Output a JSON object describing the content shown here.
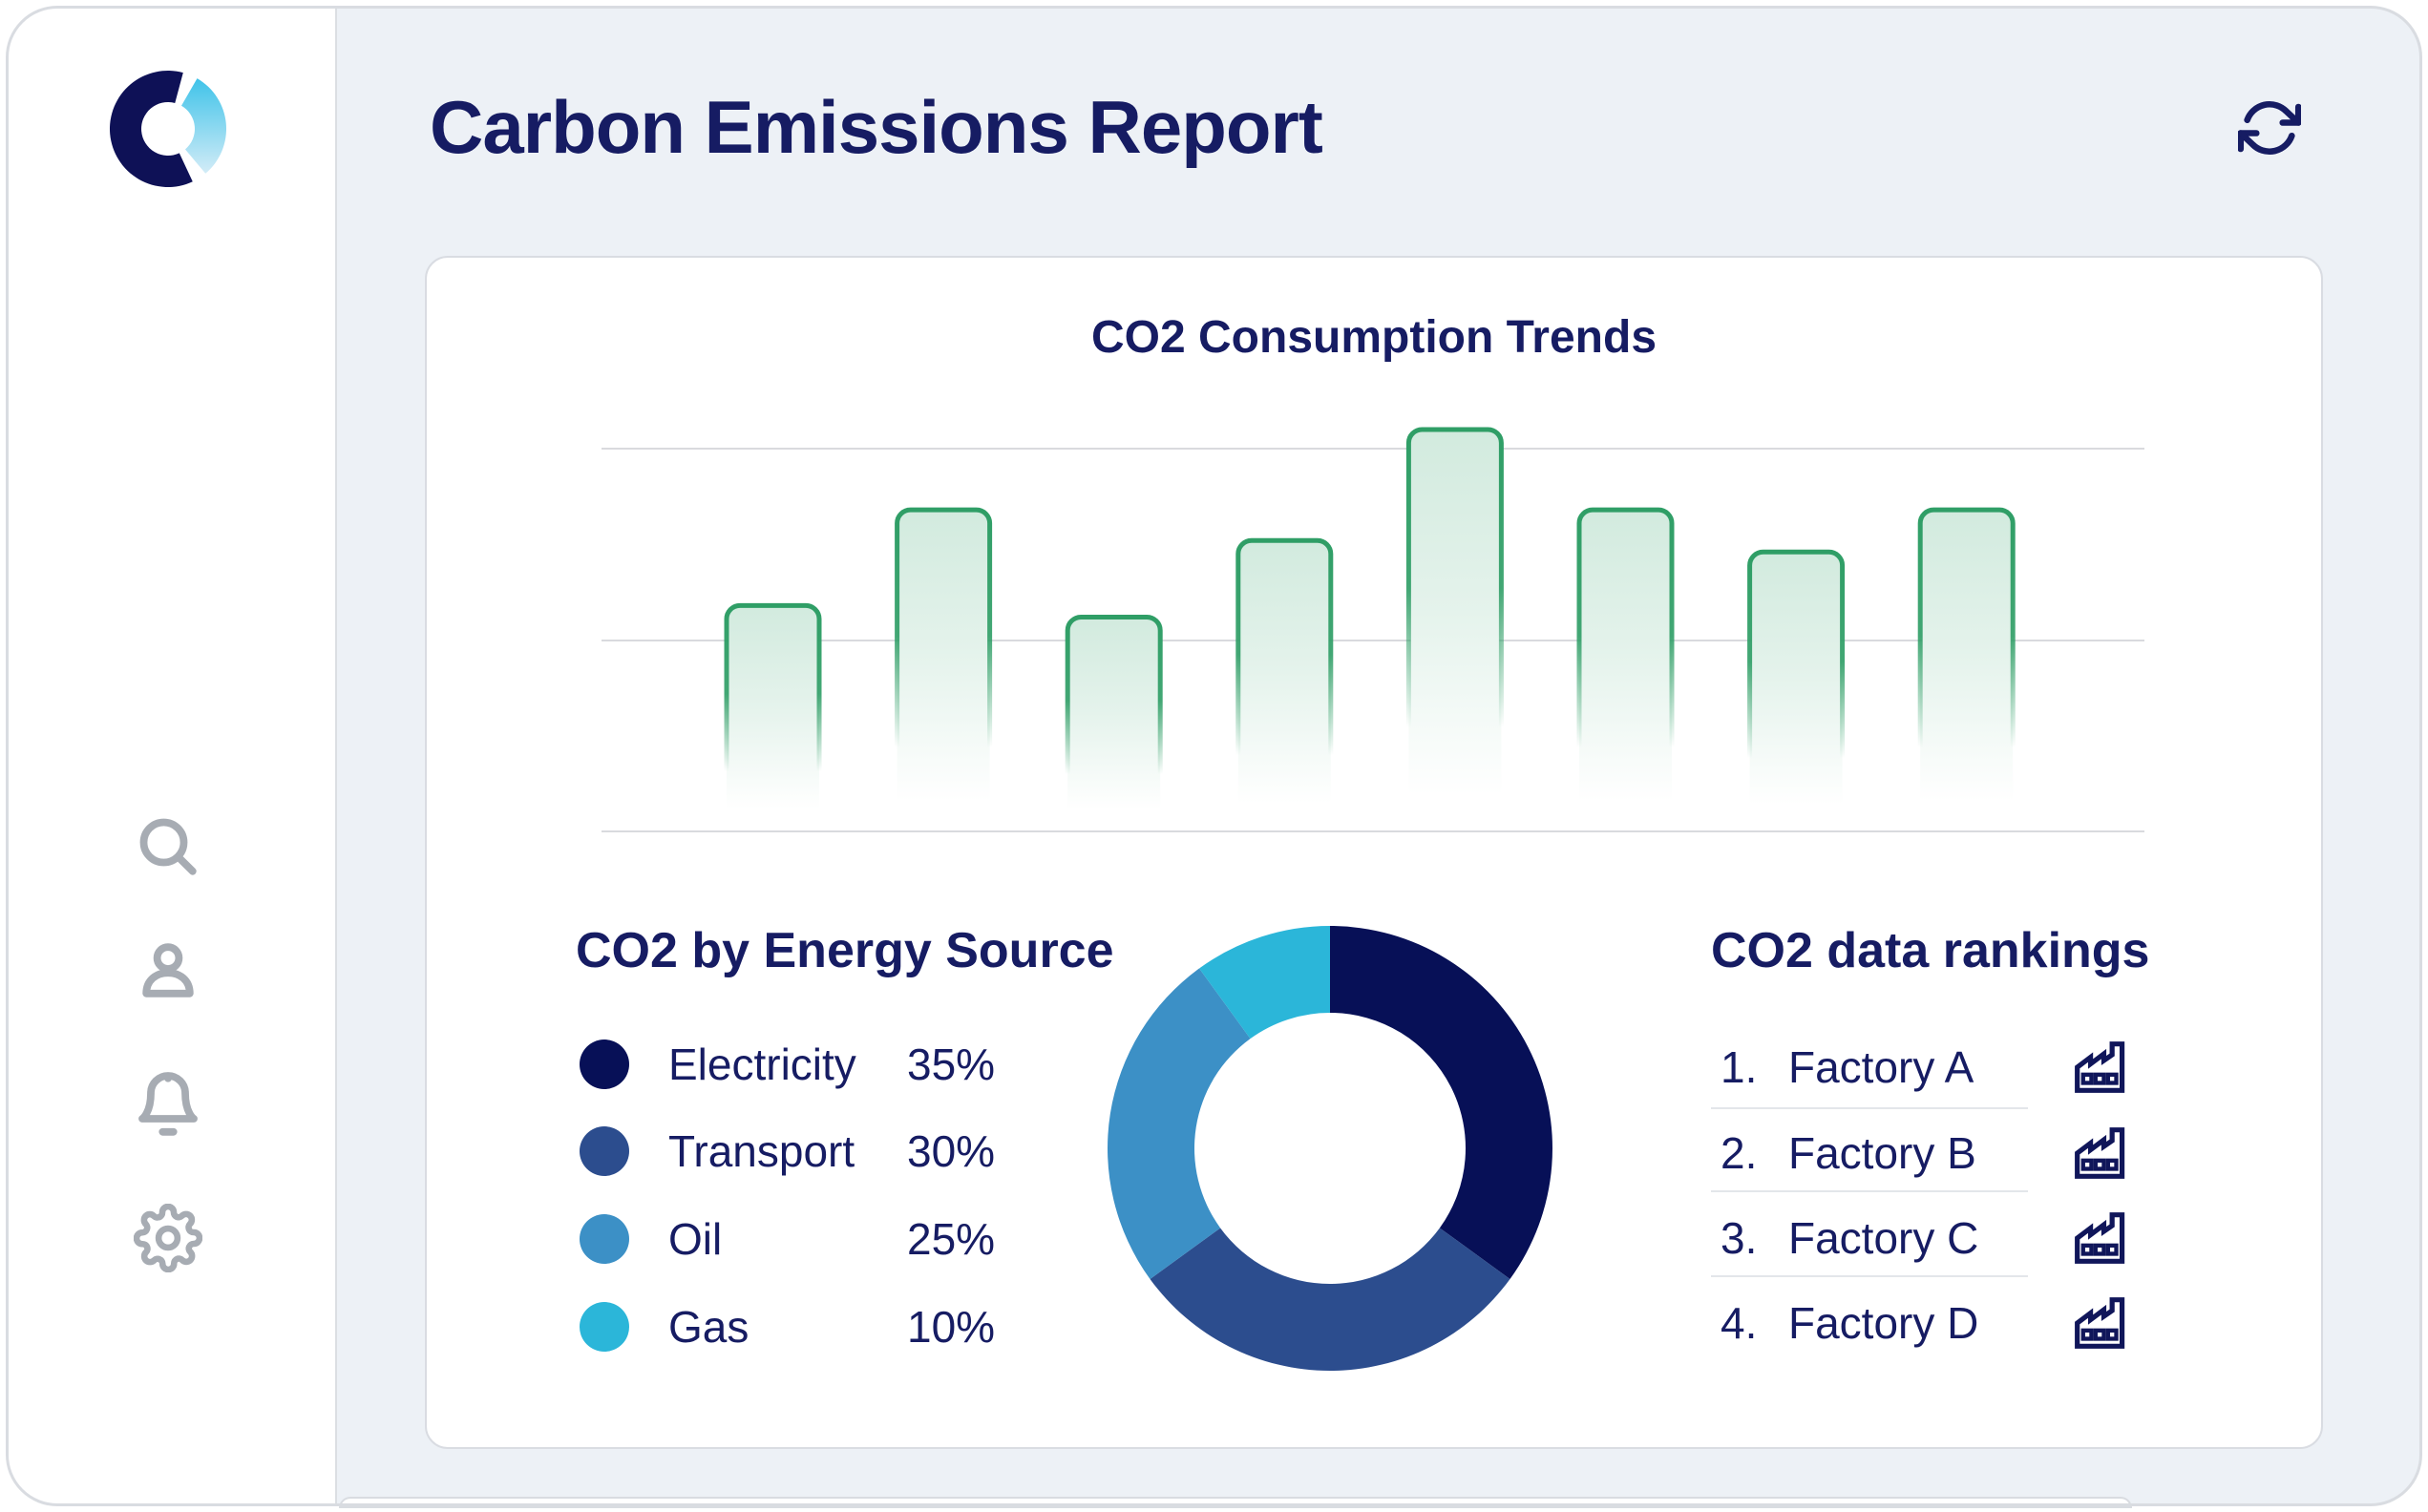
{
  "app_title": "Carbon Emissions Report",
  "sidebar": {
    "logo": "brand-donut-logo",
    "icons": [
      {
        "name": "search"
      },
      {
        "name": "user"
      },
      {
        "name": "bell"
      },
      {
        "name": "settings"
      }
    ]
  },
  "toolbar": {
    "refresh_icon": "refresh"
  },
  "chart_data": [
    {
      "type": "bar",
      "title": "CO2 Consumption Trends",
      "categories": [
        "",
        "",
        "",
        "",
        "",
        "",
        "",
        ""
      ],
      "values": [
        59,
        84,
        56,
        76,
        105,
        84,
        73,
        84
      ],
      "ylim": [
        0,
        110
      ],
      "gridlines": [
        0,
        50,
        100
      ],
      "grid": true,
      "xlabel": "",
      "ylabel": "",
      "bar_color": "#2f9e66",
      "bar_style": "rounded top, gradient fade to transparent at bottom"
    },
    {
      "type": "donut",
      "title": "CO2 by Energy Source",
      "start_angle_deg": 0,
      "direction": "clockwise",
      "segments": [
        {
          "label": "Electricity",
          "value": 35,
          "display": "35%",
          "color": "#071057"
        },
        {
          "label": "Transport",
          "value": 30,
          "display": "30%",
          "color": "#2c4d8e"
        },
        {
          "label": "Oil",
          "value": 25,
          "display": "25%",
          "color": "#3c90c6"
        },
        {
          "label": "Gas",
          "value": 10,
          "display": "10%",
          "color": "#2bb6d9"
        }
      ]
    }
  ],
  "rankings": {
    "title": "CO2 data rankings",
    "icon": "factory",
    "items": [
      {
        "rank": "1.",
        "label": "Factory A"
      },
      {
        "rank": "2.",
        "label": "Factory B"
      },
      {
        "rank": "3.",
        "label": "Factory C"
      },
      {
        "rank": "4.",
        "label": "Factory D"
      }
    ]
  },
  "colors": {
    "text_navy": "#161c63",
    "icon_gray": "#a7acb3",
    "grid_line": "#d9dade",
    "card_border": "#d9dce2",
    "divider": "#e3e6ea",
    "bar_green": "#2f9e66",
    "logo_navy": "#0e1156",
    "logo_cyan_top": "#3fc3e9",
    "logo_cyan_bottom": "#d3ecf7"
  }
}
